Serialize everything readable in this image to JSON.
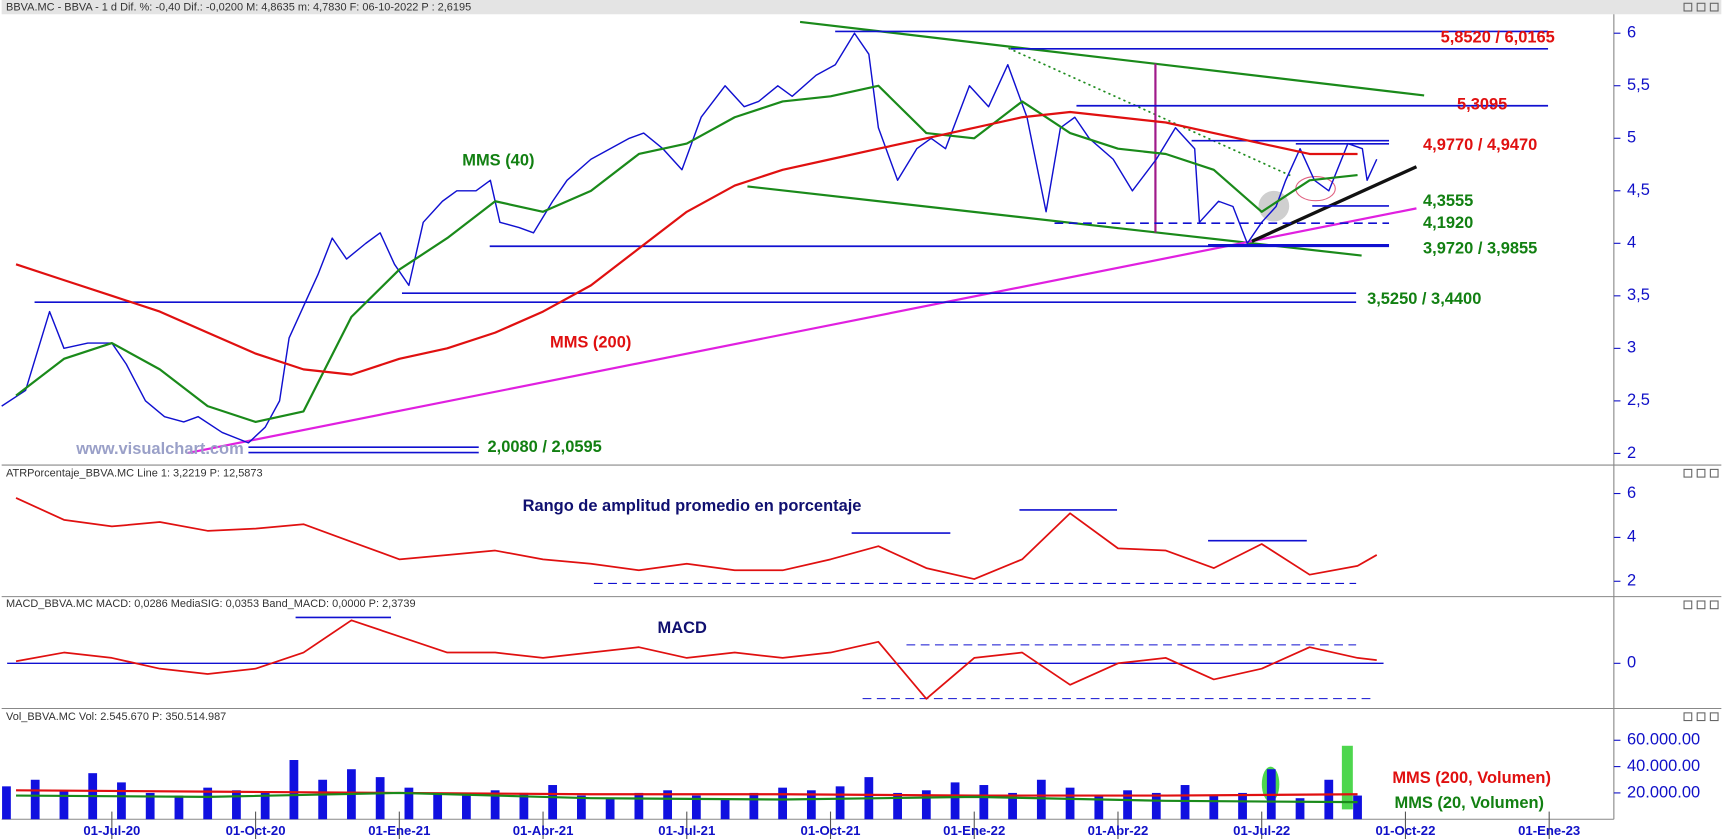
{
  "chart_data": [
    {
      "type": "line",
      "title": "BBVA.MC - BBVA -   1 d  Dif. %: -0,40  Dif.: -0,0200  M: 4,8635  m: 4,7830  F: 06-10-2022  P : 2,6195",
      "xlim": [
        0.7,
        34.35
      ],
      "ylim": [
        1.9,
        6.17
      ],
      "yticks": [
        2,
        {
          "value": 2.5,
          "label": "2,5"
        },
        3,
        {
          "value": 3.5,
          "label": "3,5"
        },
        4,
        {
          "value": 4.5,
          "label": "4,5"
        },
        5,
        {
          "value": 5.5,
          "label": "5,5"
        },
        6
      ],
      "series": [
        {
          "color": "#1010d0",
          "width": 1.3,
          "x": [
            0.7,
            1.2,
            1.7,
            2.0,
            2.5,
            3.0,
            3.3,
            3.7,
            4.1,
            4.5,
            4.8,
            5.3,
            5.85,
            6.2,
            6.5,
            6.7,
            7.0,
            7.3,
            7.6,
            7.9,
            8.3,
            8.6,
            8.9,
            9.2,
            9.5,
            9.9,
            10.2,
            10.6,
            10.9,
            11.1,
            11.5,
            11.8,
            12.2,
            12.5,
            13.0,
            13.4,
            13.8,
            14.1,
            14.5,
            14.9,
            15.3,
            15.8,
            16.2,
            16.5,
            16.9,
            17.2,
            17.7,
            18.1,
            18.5,
            18.8,
            19.0,
            19.4,
            19.8,
            20.1,
            20.4,
            20.9,
            21.3,
            21.7,
            22.1,
            22.5,
            22.8,
            23.1,
            23.4,
            23.9,
            24.3,
            24.8,
            25.2,
            25.6,
            25.7,
            26.1,
            26.4,
            26.7,
            27.0,
            27.3,
            27.5,
            27.8,
            28.1,
            28.4,
            28.8,
            29.1,
            29.2,
            29.4
          ],
          "values": [
            2.45,
            2.6,
            3.35,
            3.0,
            3.05,
            3.05,
            2.85,
            2.5,
            2.35,
            2.3,
            2.35,
            2.2,
            2.1,
            2.25,
            2.5,
            3.1,
            3.4,
            3.7,
            4.05,
            3.85,
            4.0,
            4.1,
            3.8,
            3.6,
            4.2,
            4.4,
            4.5,
            4.5,
            4.6,
            4.2,
            4.15,
            4.1,
            4.4,
            4.6,
            4.8,
            4.9,
            5.0,
            5.05,
            4.9,
            4.7,
            5.2,
            5.5,
            5.3,
            5.35,
            5.5,
            5.4,
            5.6,
            5.7,
            6.0,
            5.8,
            5.1,
            4.6,
            4.9,
            5.0,
            4.9,
            5.5,
            5.3,
            5.7,
            5.2,
            4.3,
            5.1,
            5.2,
            5.0,
            4.8,
            4.5,
            4.8,
            5.1,
            4.9,
            4.2,
            4.4,
            4.35,
            4.0,
            4.2,
            4.35,
            4.6,
            4.9,
            4.6,
            4.5,
            4.95,
            4.9,
            4.6,
            4.8
          ]
        },
        {
          "color": "#1a8a1a",
          "width": 2,
          "x": [
            1,
            2,
            3,
            4,
            5,
            6,
            7,
            8,
            9,
            10,
            11,
            12,
            13,
            14,
            15,
            16,
            17,
            18,
            19,
            20,
            21,
            22,
            23,
            24,
            25,
            26,
            27,
            28,
            29
          ],
          "values": [
            2.55,
            2.9,
            3.05,
            2.8,
            2.45,
            2.3,
            2.4,
            3.3,
            3.75,
            4.05,
            4.4,
            4.3,
            4.5,
            4.85,
            4.95,
            5.2,
            5.35,
            5.4,
            5.5,
            5.05,
            5.0,
            5.35,
            5.05,
            4.9,
            4.85,
            4.7,
            4.3,
            4.6,
            4.65
          ]
        },
        {
          "color": "#e01010",
          "width": 2,
          "x": [
            1,
            2,
            3,
            4,
            5,
            6,
            7,
            8,
            9,
            10,
            11,
            12,
            13,
            14,
            15,
            16,
            17,
            18,
            19,
            20,
            21,
            22,
            23,
            24,
            25,
            26,
            27,
            28,
            29
          ],
          "values": [
            3.8,
            3.65,
            3.5,
            3.35,
            3.15,
            2.95,
            2.8,
            2.75,
            2.9,
            3.0,
            3.15,
            3.35,
            3.6,
            3.95,
            4.3,
            4.55,
            4.7,
            4.8,
            4.9,
            5.0,
            5.1,
            5.2,
            5.25,
            5.2,
            5.15,
            5.05,
            4.95,
            4.85,
            4.85
          ]
        }
      ],
      "levels": [
        {
          "label": "5,8520 / 6,0165",
          "values": [
            5.852,
            6.0165
          ],
          "color": "#e01010"
        },
        {
          "label": "5,3095",
          "values": [
            5.3095
          ],
          "color": "#e01010"
        },
        {
          "label": "4,9770 / 4,9470",
          "values": [
            4.977,
            4.947
          ],
          "color": "#e01010"
        },
        {
          "label": "4,3555",
          "values": [
            4.3555
          ],
          "color": "#128012"
        },
        {
          "label": "4,1920",
          "values": [
            4.192
          ],
          "color": "#128012",
          "style": "dashed"
        },
        {
          "label": "3,9720 / 3,9855",
          "values": [
            3.972,
            3.9855
          ],
          "color": "#128012"
        },
        {
          "label": "3,5250 / 3,4400",
          "values": [
            3.525,
            3.44
          ],
          "color": "#128012"
        },
        {
          "label": "2,0080 / 2,0595",
          "values": [
            2.008,
            2.0595
          ],
          "color": "#128012"
        }
      ],
      "annotations": [
        {
          "text": "MMS (40)",
          "color": "#128012"
        },
        {
          "text": "MMS (200)",
          "color": "#e01010"
        },
        {
          "text": "www.visualchart.com",
          "color": "#9aa0c8"
        }
      ]
    },
    {
      "type": "line",
      "title": "ATRPorcentaje_BBVA.MC  Line 1: 3,2219  P: 12,5873",
      "xlim": [
        0.7,
        34.35
      ],
      "ylim": [
        1.35,
        7.1
      ],
      "yticks": [
        2,
        4,
        6
      ],
      "series": [
        {
          "color": "#e01010",
          "width": 1.6,
          "x": [
            1,
            2,
            3,
            4,
            5,
            6,
            7,
            8,
            9,
            10,
            11,
            12,
            13,
            14,
            15,
            16,
            17,
            18,
            19,
            20,
            21,
            22,
            23,
            24,
            25,
            26,
            27,
            28,
            29,
            29.4
          ],
          "values": [
            5.8,
            4.8,
            4.5,
            4.7,
            4.3,
            4.4,
            4.6,
            3.8,
            3.0,
            3.2,
            3.4,
            3.0,
            2.8,
            2.5,
            2.8,
            2.5,
            2.5,
            3.0,
            3.6,
            2.6,
            2.1,
            3.0,
            5.1,
            3.5,
            3.4,
            2.6,
            3.7,
            2.3,
            2.7,
            3.2
          ]
        }
      ],
      "annotations": [
        {
          "text": "Rango de amplitud promedio en porcentaje",
          "color": "#101070"
        }
      ]
    },
    {
      "type": "line",
      "title": "MACD_BBVA.MC  MACD: 0,0286  MediaSIG: 0,0353  Band_MACD: 0,0000  P: 2,3739",
      "xlim": [
        0.7,
        34.35
      ],
      "ylim": [
        -0.41,
        0.59
      ],
      "yticks": [
        0
      ],
      "series": [
        {
          "color": "#e01010",
          "width": 1.6,
          "x": [
            1,
            2,
            3,
            4,
            5,
            6,
            7,
            8,
            9,
            10,
            11,
            12,
            13,
            14,
            15,
            16,
            17,
            18,
            19,
            20,
            21,
            22,
            23,
            24,
            25,
            26,
            27,
            28,
            29,
            29.4
          ],
          "values": [
            0.02,
            0.1,
            0.05,
            -0.05,
            -0.1,
            -0.05,
            0.1,
            0.4,
            0.25,
            0.1,
            0.1,
            0.05,
            0.1,
            0.15,
            0.05,
            0.1,
            0.05,
            0.1,
            0.2,
            -0.33,
            0.05,
            0.1,
            -0.2,
            0.0,
            0.05,
            -0.15,
            -0.05,
            0.15,
            0.05,
            0.03
          ]
        }
      ],
      "annotations": [
        {
          "text": "MACD",
          "color": "#101070"
        }
      ]
    },
    {
      "type": "bar",
      "title": "Vol_BBVA.MC  Vol: 2.545.670  P: 350.514.987",
      "xlim": [
        0.7,
        34.35
      ],
      "ylim": [
        0,
        80800000
      ],
      "yticks": [
        {
          "value": 20000000,
          "label": "20.000.00"
        },
        {
          "value": 40000000,
          "label": "40.000.00"
        },
        {
          "value": 60000000,
          "label": "60.000.00"
        }
      ],
      "xticks": [
        {
          "value": 3,
          "label": "01-Jul-20"
        },
        {
          "value": 6,
          "label": "01-Oct-20"
        },
        {
          "value": 9,
          "label": "01-Ene-21"
        },
        {
          "value": 12,
          "label": "01-Abr-21"
        },
        {
          "value": 15,
          "label": "01-Jul-21"
        },
        {
          "value": 18,
          "label": "01-Oct-21"
        },
        {
          "value": 21,
          "label": "01-Ene-22"
        },
        {
          "value": 24,
          "label": "01-Abr-22"
        },
        {
          "value": 27,
          "label": "01-Jul-22"
        },
        {
          "value": 30,
          "label": "01-Oct-22"
        },
        {
          "value": 33,
          "label": "01-Ene-23"
        }
      ],
      "color": "#1010e0",
      "x": [
        0.8,
        1.4,
        2.0,
        2.6,
        3.2,
        3.8,
        4.4,
        5.0,
        5.6,
        6.2,
        6.8,
        7.4,
        8.0,
        8.6,
        9.2,
        9.8,
        10.4,
        11.0,
        11.6,
        12.2,
        12.8,
        13.4,
        14.0,
        14.6,
        15.2,
        15.8,
        16.4,
        17.0,
        17.6,
        18.2,
        18.8,
        19.4,
        20.0,
        20.6,
        21.2,
        21.8,
        22.4,
        23.0,
        23.6,
        24.2,
        24.8,
        25.4,
        26.0,
        26.6,
        27.2,
        27.8,
        28.4,
        29.0
      ],
      "values": [
        25000000,
        30000000,
        22000000,
        35000000,
        28000000,
        20000000,
        18000000,
        24000000,
        22000000,
        20000000,
        45000000,
        30000000,
        38000000,
        32000000,
        24000000,
        20000000,
        18000000,
        22000000,
        20000000,
        26000000,
        18000000,
        16000000,
        20000000,
        22000000,
        18000000,
        16000000,
        20000000,
        24000000,
        22000000,
        25000000,
        32000000,
        20000000,
        22000000,
        28000000,
        26000000,
        20000000,
        30000000,
        24000000,
        18000000,
        22000000,
        20000000,
        26000000,
        18000000,
        20000000,
        38000000,
        16000000,
        30000000,
        18000000
      ],
      "series": [
        {
          "color": "#e01010",
          "width": 2,
          "x": [
            1,
            5,
            9,
            13,
            17,
            21,
            25,
            29
          ],
          "values": [
            22000000,
            21000000,
            20000000,
            19000000,
            19000000,
            18000000,
            18000000,
            19000000
          ]
        },
        {
          "color": "#1a8a1a",
          "width": 2,
          "x": [
            1,
            5,
            9,
            13,
            17,
            21,
            25,
            29
          ],
          "values": [
            18000000,
            17000000,
            20000000,
            16000000,
            15000000,
            17000000,
            14000000,
            13000000
          ]
        }
      ],
      "annotations": [
        {
          "text": "MMS (200, Volumen)",
          "color": "#e01010"
        },
        {
          "text": "MMS (20, Volumen)",
          "color": "#128012"
        }
      ]
    }
  ]
}
